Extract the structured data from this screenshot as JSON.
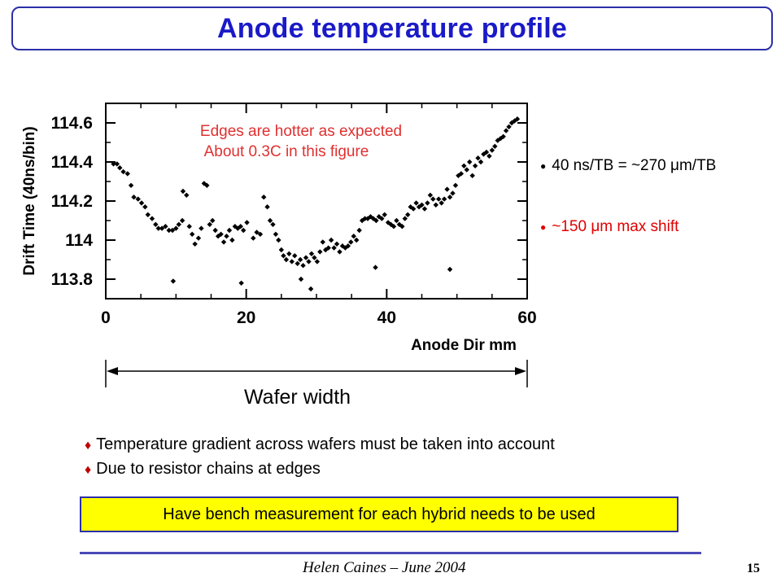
{
  "slide": {
    "title": "Anode temperature profile",
    "right_bullets": [
      {
        "text": "40 ns/TB = ~270 μm/TB",
        "color": "#000000"
      },
      {
        "text": "~150 μm max shift",
        "color": "#e00000"
      }
    ],
    "wafer_label": "Wafer width",
    "bullets": [
      "Temperature gradient across wafers must be taken into account",
      "Due to resistor chains at edges"
    ],
    "note": "Have bench measurement for each hybrid needs to be used",
    "footer": "Helen Caines – June 2004",
    "page_number": "15"
  },
  "chart_data": {
    "type": "scatter",
    "xlabel": "Anode Dir mm",
    "ylabel": "Drift Time (40ns/bin)",
    "xlim": [
      0,
      60
    ],
    "ylim": [
      113.7,
      114.7
    ],
    "xticks": [
      0,
      20,
      40,
      60
    ],
    "yticks": [
      113.8,
      114,
      114.2,
      114.4,
      114.6
    ],
    "ytick_labels": [
      "113.8",
      "114",
      "114.2",
      "114.4",
      "114.6"
    ],
    "annotation": [
      "Edges are hotter as expected",
      "About 0.3C in this figure"
    ],
    "annotation_color": "#e03030",
    "marker_color": "#000000",
    "points": [
      [
        1.1,
        114.39
      ],
      [
        1.6,
        114.39
      ],
      [
        2.0,
        114.37
      ],
      [
        2.5,
        114.35
      ],
      [
        3.1,
        114.34
      ],
      [
        3.6,
        114.28
      ],
      [
        4.0,
        114.22
      ],
      [
        4.6,
        114.21
      ],
      [
        5.1,
        114.19
      ],
      [
        5.6,
        114.17
      ],
      [
        6.0,
        114.13
      ],
      [
        6.6,
        114.11
      ],
      [
        7.1,
        114.08
      ],
      [
        7.5,
        114.06
      ],
      [
        8.0,
        114.06
      ],
      [
        8.5,
        114.07
      ],
      [
        9.0,
        114.05
      ],
      [
        9.5,
        114.05
      ],
      [
        10.0,
        114.06
      ],
      [
        10.4,
        114.08
      ],
      [
        10.9,
        114.1
      ],
      [
        11.0,
        114.25
      ],
      [
        11.5,
        114.23
      ],
      [
        11.9,
        114.07
      ],
      [
        12.3,
        114.03
      ],
      [
        12.7,
        113.98
      ],
      [
        13.2,
        114.01
      ],
      [
        13.6,
        114.06
      ],
      [
        14.0,
        114.29
      ],
      [
        14.4,
        114.28
      ],
      [
        14.8,
        114.08
      ],
      [
        15.2,
        114.1
      ],
      [
        15.6,
        114.05
      ],
      [
        16.0,
        114.02
      ],
      [
        16.4,
        114.03
      ],
      [
        16.8,
        113.99
      ],
      [
        17.2,
        114.02
      ],
      [
        17.6,
        114.05
      ],
      [
        18.0,
        114.0
      ],
      [
        18.4,
        114.07
      ],
      [
        18.8,
        114.06
      ],
      [
        19.2,
        114.07
      ],
      [
        19.6,
        114.05
      ],
      [
        20.1,
        114.09
      ],
      [
        21.0,
        114.01
      ],
      [
        21.5,
        114.04
      ],
      [
        22.0,
        114.03
      ],
      [
        22.5,
        114.22
      ],
      [
        23.0,
        114.17
      ],
      [
        23.4,
        114.1
      ],
      [
        23.8,
        114.08
      ],
      [
        24.2,
        114.03
      ],
      [
        24.6,
        114.0
      ],
      [
        25.0,
        113.95
      ],
      [
        25.3,
        113.92
      ],
      [
        25.7,
        113.9
      ],
      [
        26.1,
        113.93
      ],
      [
        26.5,
        113.89
      ],
      [
        26.9,
        113.92
      ],
      [
        27.3,
        113.88
      ],
      [
        27.7,
        113.9
      ],
      [
        28.1,
        113.87
      ],
      [
        28.5,
        113.91
      ],
      [
        28.9,
        113.89
      ],
      [
        29.3,
        113.93
      ],
      [
        29.7,
        113.91
      ],
      [
        30.1,
        113.89
      ],
      [
        30.5,
        113.94
      ],
      [
        30.9,
        113.99
      ],
      [
        31.3,
        113.95
      ],
      [
        31.7,
        113.96
      ],
      [
        32.1,
        114.0
      ],
      [
        32.5,
        113.96
      ],
      [
        32.9,
        113.98
      ],
      [
        33.3,
        113.94
      ],
      [
        33.7,
        113.97
      ],
      [
        34.1,
        113.96
      ],
      [
        34.5,
        113.97
      ],
      [
        34.9,
        113.99
      ],
      [
        35.3,
        114.02
      ],
      [
        35.7,
        114.0
      ],
      [
        36.1,
        114.05
      ],
      [
        36.5,
        114.1
      ],
      [
        36.9,
        114.11
      ],
      [
        37.3,
        114.11
      ],
      [
        37.7,
        114.12
      ],
      [
        38.1,
        114.11
      ],
      [
        38.5,
        114.1
      ],
      [
        38.9,
        114.12
      ],
      [
        39.3,
        114.11
      ],
      [
        39.7,
        114.13
      ],
      [
        40.2,
        114.09
      ],
      [
        40.6,
        114.08
      ],
      [
        41.0,
        114.07
      ],
      [
        41.4,
        114.1
      ],
      [
        41.8,
        114.08
      ],
      [
        42.2,
        114.07
      ],
      [
        42.6,
        114.11
      ],
      [
        43.0,
        114.13
      ],
      [
        43.4,
        114.17
      ],
      [
        43.8,
        114.16
      ],
      [
        44.2,
        114.19
      ],
      [
        44.6,
        114.17
      ],
      [
        45.0,
        114.18
      ],
      [
        45.4,
        114.16
      ],
      [
        45.8,
        114.19
      ],
      [
        46.2,
        114.23
      ],
      [
        46.6,
        114.21
      ],
      [
        47.0,
        114.18
      ],
      [
        47.4,
        114.21
      ],
      [
        47.8,
        114.19
      ],
      [
        48.2,
        114.21
      ],
      [
        48.6,
        114.26
      ],
      [
        49.0,
        114.22
      ],
      [
        49.4,
        114.24
      ],
      [
        49.8,
        114.28
      ],
      [
        50.2,
        114.33
      ],
      [
        50.6,
        114.34
      ],
      [
        51.0,
        114.38
      ],
      [
        51.4,
        114.36
      ],
      [
        51.8,
        114.4
      ],
      [
        52.2,
        114.33
      ],
      [
        52.6,
        114.38
      ],
      [
        53.0,
        114.42
      ],
      [
        53.4,
        114.4
      ],
      [
        53.8,
        114.44
      ],
      [
        54.2,
        114.45
      ],
      [
        54.6,
        114.43
      ],
      [
        55.0,
        114.46
      ],
      [
        55.4,
        114.48
      ],
      [
        55.8,
        114.51
      ],
      [
        56.2,
        114.52
      ],
      [
        56.6,
        114.53
      ],
      [
        57.0,
        114.56
      ],
      [
        57.4,
        114.58
      ],
      [
        57.8,
        114.6
      ],
      [
        58.2,
        114.61
      ],
      [
        58.6,
        114.62
      ],
      [
        9.6,
        113.79
      ],
      [
        19.3,
        113.78
      ],
      [
        27.8,
        113.8
      ],
      [
        29.2,
        113.75
      ],
      [
        38.4,
        113.86
      ],
      [
        49.0,
        113.85
      ]
    ]
  }
}
